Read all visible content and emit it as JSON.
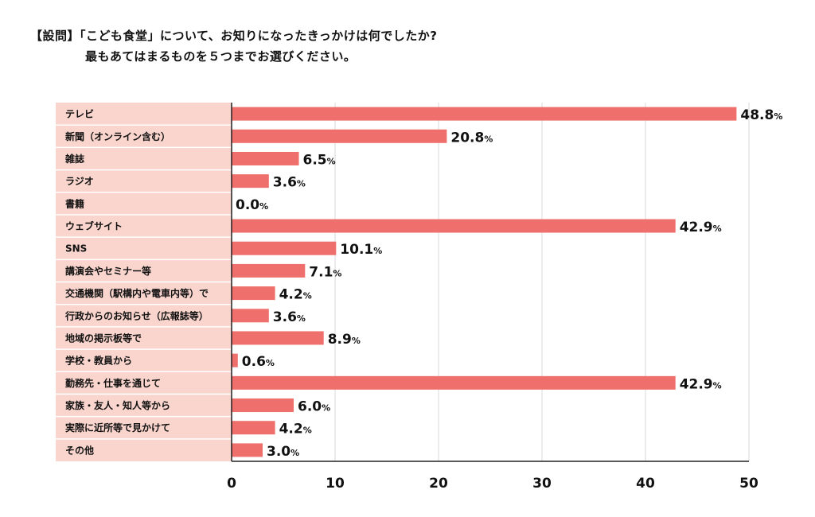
{
  "question": {
    "title": "【設問】「こども食堂」について、お知りになったきっかけは何でしたか?",
    "subtitle": "最もあてはまるものを５つまでお選びください。"
  },
  "colors": {
    "bar": "#ee6f6b",
    "label_band": "#f9d5cd",
    "grid": "#d9d9d9",
    "axis": "#222222"
  },
  "chart_data": {
    "type": "bar",
    "orientation": "horizontal",
    "categories": [
      "テレビ",
      "新聞（オンライン含む）",
      "雑誌",
      "ラジオ",
      "書籍",
      "ウェブサイト",
      "SNS",
      "講演会やセミナー等",
      "交通機関（駅構内や電車内等）で",
      "行政からのお知らせ（広報誌等）",
      "地域の掲示板等で",
      "学校・教員から",
      "勤務先・仕事を通じて",
      "家族・友人・知人等から",
      "実際に近所等で見かけて",
      "その他"
    ],
    "values": [
      48.8,
      20.8,
      6.5,
      3.6,
      0.0,
      42.9,
      10.1,
      7.1,
      4.2,
      3.6,
      8.9,
      0.6,
      42.9,
      6.0,
      4.2,
      3.0
    ],
    "value_labels": [
      "48.8",
      "20.8",
      "6.5",
      "3.6",
      "0.0",
      "42.9",
      "10.1",
      "7.1",
      "4.2",
      "3.6",
      "8.9",
      "0.6",
      "42.9",
      "6.0",
      "4.2",
      "3.0"
    ],
    "value_suffix": "%",
    "xlim": [
      0,
      50
    ],
    "xticks": [
      0,
      10,
      20,
      30,
      40,
      50
    ],
    "xlabel": "",
    "ylabel": "",
    "grid": true
  }
}
